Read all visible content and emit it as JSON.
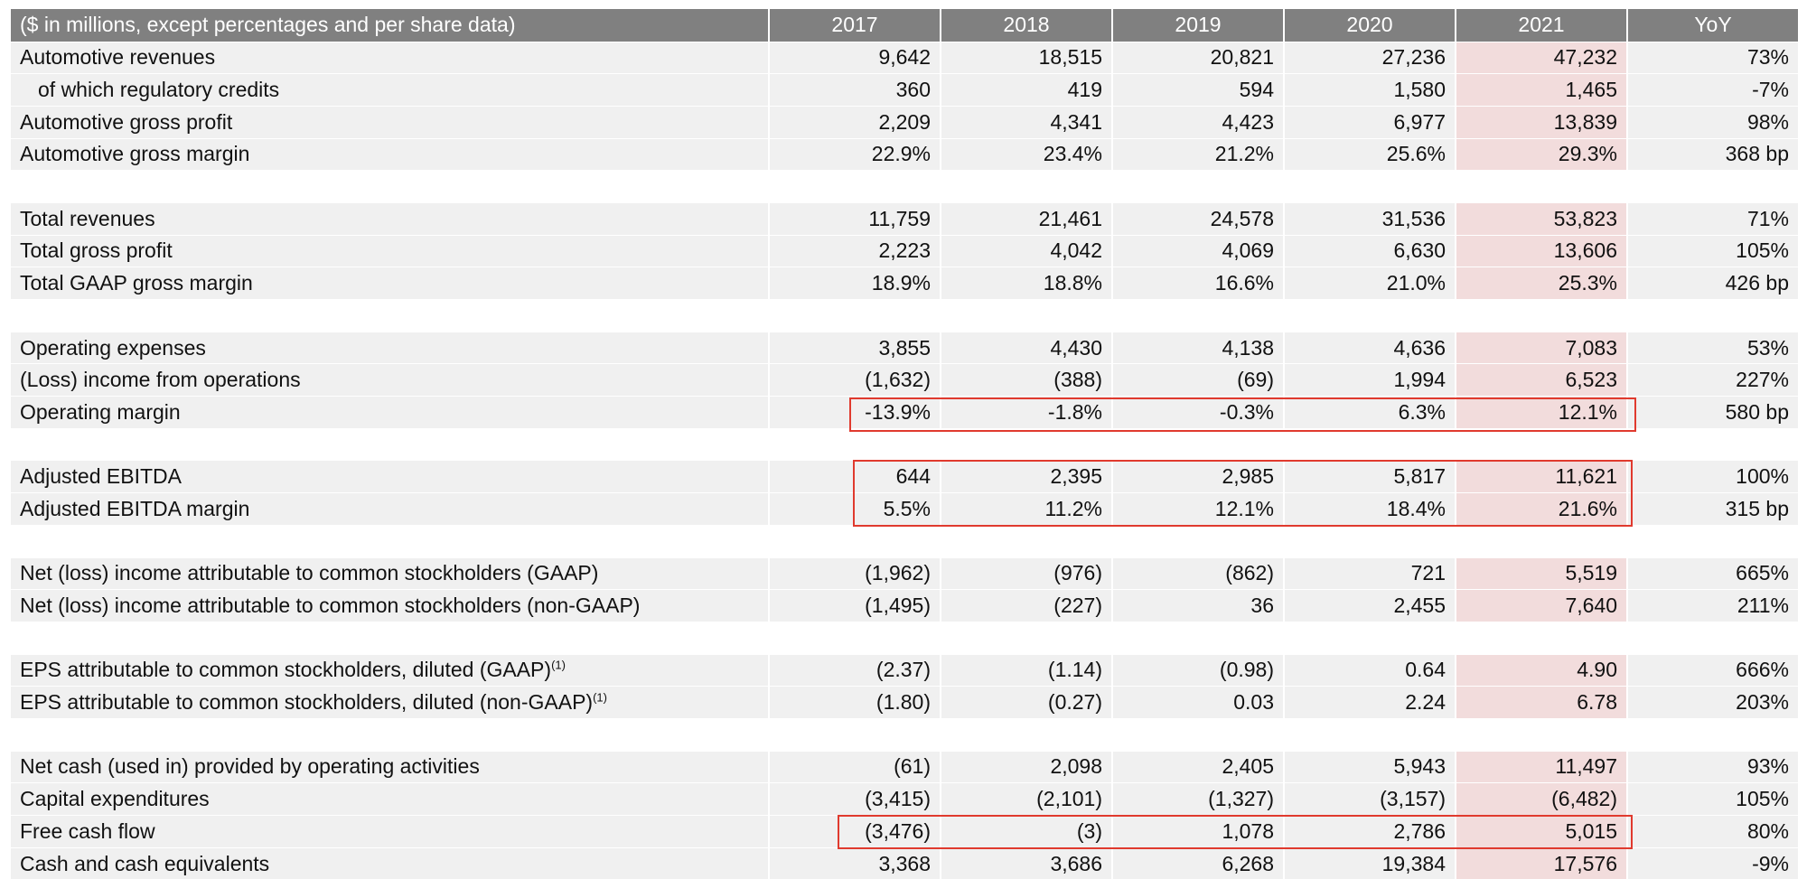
{
  "table": {
    "header": [
      "($ in millions, except percentages and per share data)",
      "2017",
      "2018",
      "2019",
      "2020",
      "2021",
      "YoY"
    ],
    "groups": [
      [
        {
          "cells": [
            "Automotive revenues",
            "9,642",
            "18,515",
            "20,821",
            "27,236",
            "47,232",
            "73%"
          ]
        },
        {
          "cells": [
            "of which regulatory credits",
            "360",
            "419",
            "594",
            "1,580",
            "1,465",
            "-7%"
          ]
        },
        {
          "cells": [
            "Automotive gross profit",
            "2,209",
            "4,341",
            "4,423",
            "6,977",
            "13,839",
            "98%"
          ]
        },
        {
          "cells": [
            "Automotive gross margin",
            "22.9%",
            "23.4%",
            "21.2%",
            "25.6%",
            "29.3%",
            "368 bp"
          ]
        }
      ],
      [
        {
          "cells": [
            "Total revenues",
            "11,759",
            "21,461",
            "24,578",
            "31,536",
            "53,823",
            "71%"
          ]
        },
        {
          "cells": [
            "Total gross profit",
            "2,223",
            "4,042",
            "4,069",
            "6,630",
            "13,606",
            "105%"
          ]
        },
        {
          "cells": [
            "Total GAAP gross margin",
            "18.9%",
            "18.8%",
            "16.6%",
            "21.0%",
            "25.3%",
            "426 bp"
          ]
        }
      ],
      [
        {
          "cells": [
            "Operating expenses",
            "3,855",
            "4,430",
            "4,138",
            "4,636",
            "7,083",
            "53%"
          ]
        },
        {
          "cells": [
            "(Loss) income from operations",
            "(1,632)",
            "(388)",
            "(69)",
            "1,994",
            "6,523",
            "227%"
          ]
        },
        {
          "cells": [
            "Operating margin",
            "-13.9%",
            "-1.8%",
            "-0.3%",
            "6.3%",
            "12.1%",
            "580 bp"
          ]
        }
      ],
      [
        {
          "cells": [
            "Adjusted EBITDA",
            "644",
            "2,395",
            "2,985",
            "5,817",
            "11,621",
            "100%"
          ]
        },
        {
          "cells": [
            "Adjusted EBITDA margin",
            "5.5%",
            "11.2%",
            "12.1%",
            "18.4%",
            "21.6%",
            "315 bp"
          ]
        }
      ],
      [
        {
          "cells": [
            "Net (loss) income attributable to common stockholders (GAAP)",
            "(1,962)",
            "(976)",
            "(862)",
            "721",
            "5,519",
            "665%"
          ]
        },
        {
          "cells": [
            "Net (loss) income attributable to common stockholders (non-GAAP)",
            "(1,495)",
            "(227)",
            "36",
            "2,455",
            "7,640",
            "211%"
          ]
        }
      ],
      [
        {
          "cells": [
            "EPS attributable to common stockholders, diluted (GAAP)",
            "(2.37)",
            "(1.14)",
            "(0.98)",
            "0.64",
            "4.90",
            "666%"
          ],
          "sup": "(1)"
        },
        {
          "cells": [
            "EPS attributable to common stockholders, diluted (non-GAAP)",
            "(1.80)",
            "(0.27)",
            "0.03",
            "2.24",
            "6.78",
            "203%"
          ],
          "sup": "(1)"
        }
      ],
      [
        {
          "cells": [
            "Net cash (used in) provided by operating activities",
            "(61)",
            "2,098",
            "2,405",
            "5,943",
            "11,497",
            "93%"
          ]
        },
        {
          "cells": [
            "Capital expenditures",
            "(3,415)",
            "(2,101)",
            "(1,327)",
            "(3,157)",
            "(6,482)",
            "105%"
          ]
        },
        {
          "cells": [
            "Free cash flow",
            "(3,476)",
            "(3)",
            "1,078",
            "2,786",
            "5,015",
            "80%"
          ]
        },
        {
          "cells": [
            "Cash and cash equivalents",
            "3,368",
            "3,686",
            "6,268",
            "19,384",
            "17,576",
            "-9%"
          ]
        }
      ]
    ]
  }
}
